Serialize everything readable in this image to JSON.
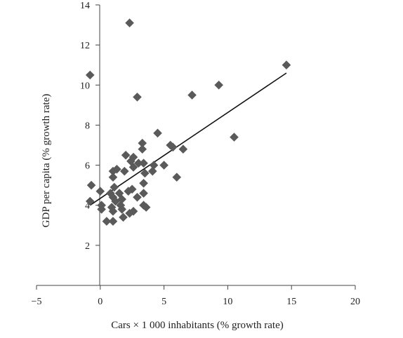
{
  "chart_data": {
    "type": "scatter",
    "title": "",
    "xlabel": "Cars × 1 000 inhabitants (% growth rate)",
    "ylabel": "GDP per capita (% growth rate)",
    "xlim": [
      -5,
      20
    ],
    "ylim": [
      0,
      14
    ],
    "x_ticks": [
      -5,
      0,
      5,
      10,
      15,
      20
    ],
    "y_ticks": [
      2,
      4,
      6,
      8,
      10,
      12,
      14
    ],
    "x_tick_labels": [
      "−5",
      "0",
      "5",
      "10",
      "15",
      "20"
    ],
    "y_tick_labels": [
      "2",
      "4",
      "6",
      "8",
      "10",
      "12",
      "14"
    ],
    "grid": false,
    "legend": "none",
    "marker": "diamond",
    "marker_color": "#5a5a5a",
    "line_color": "#111111",
    "points": [
      [
        2.3,
        13.1
      ],
      [
        -0.8,
        10.5
      ],
      [
        14.6,
        11.0
      ],
      [
        9.3,
        10.0
      ],
      [
        7.2,
        9.5
      ],
      [
        2.9,
        9.4
      ],
      [
        10.5,
        7.4
      ],
      [
        4.5,
        7.6
      ],
      [
        3.3,
        7.1
      ],
      [
        5.5,
        7.0
      ],
      [
        5.7,
        6.9
      ],
      [
        3.3,
        6.8
      ],
      [
        6.5,
        6.8
      ],
      [
        2.0,
        6.5
      ],
      [
        2.6,
        6.4
      ],
      [
        2.4,
        6.2
      ],
      [
        3.0,
        6.1
      ],
      [
        3.4,
        6.1
      ],
      [
        4.2,
        6.0
      ],
      [
        5.0,
        6.0
      ],
      [
        2.6,
        5.9
      ],
      [
        1.3,
        5.8
      ],
      [
        1.0,
        5.7
      ],
      [
        1.9,
        5.7
      ],
      [
        4.1,
        5.7
      ],
      [
        3.5,
        5.6
      ],
      [
        1.0,
        5.4
      ],
      [
        6.0,
        5.4
      ],
      [
        3.4,
        5.1
      ],
      [
        -0.7,
        5.0
      ],
      [
        1.1,
        4.9
      ],
      [
        2.2,
        4.7
      ],
      [
        0.0,
        4.7
      ],
      [
        0.8,
        4.6
      ],
      [
        1.5,
        4.6
      ],
      [
        3.4,
        4.6
      ],
      [
        2.5,
        4.8
      ],
      [
        1.0,
        4.4
      ],
      [
        1.7,
        4.3
      ],
      [
        2.9,
        4.4
      ],
      [
        1.2,
        4.2
      ],
      [
        -0.8,
        4.2
      ],
      [
        0.1,
        4.0
      ],
      [
        1.6,
        4.0
      ],
      [
        3.4,
        4.0
      ],
      [
        0.9,
        3.9
      ],
      [
        3.6,
        3.9
      ],
      [
        0.1,
        3.8
      ],
      [
        1.7,
        3.8
      ],
      [
        1.0,
        3.7
      ],
      [
        2.6,
        3.7
      ],
      [
        2.3,
        3.6
      ],
      [
        1.8,
        3.4
      ],
      [
        0.5,
        3.2
      ],
      [
        1.0,
        3.2
      ]
    ],
    "trendline": {
      "x": [
        -0.8,
        14.6
      ],
      "y": [
        4.0,
        10.6
      ]
    }
  }
}
